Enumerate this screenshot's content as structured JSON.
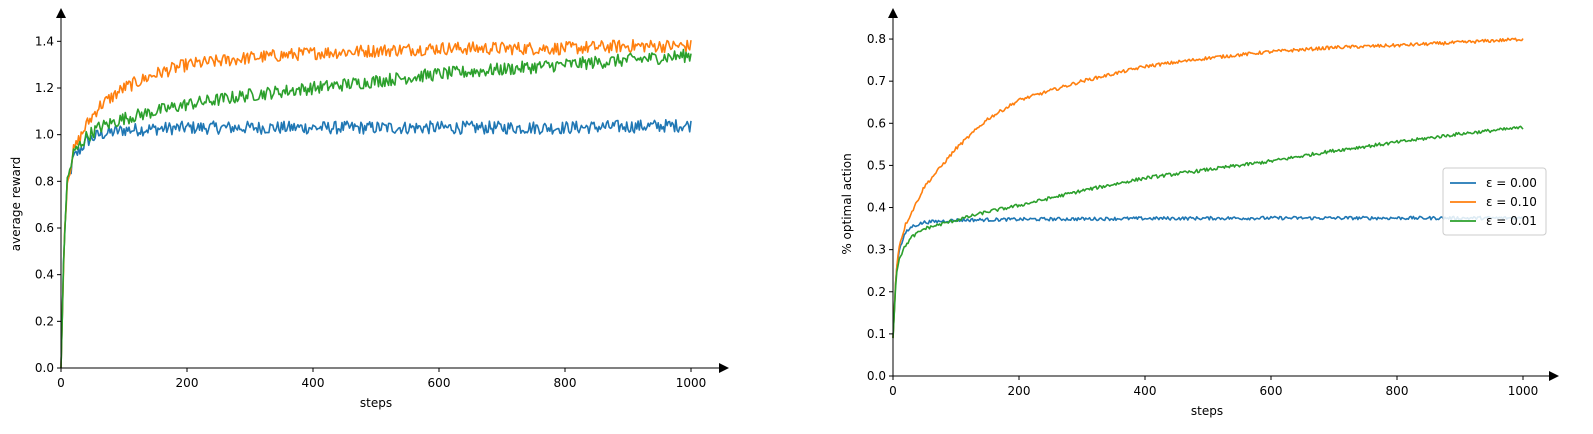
{
  "chart_data": [
    {
      "type": "line",
      "xlabel": "steps",
      "ylabel": "average reward",
      "xlim": [
        0,
        1050
      ],
      "ylim": [
        0,
        1.5
      ],
      "xticks": [
        0,
        200,
        400,
        600,
        800,
        1000
      ],
      "xtick_labels": [
        "0",
        "200",
        "400",
        "600",
        "800",
        "1000"
      ],
      "yticks": [
        0.0,
        0.2,
        0.4,
        0.6,
        0.8,
        1.0,
        1.2,
        1.4
      ],
      "ytick_labels": [
        "0.0",
        "0.2",
        "0.4",
        "0.6",
        "0.8",
        "1.0",
        "1.2",
        "1.4"
      ],
      "grid": false,
      "series": [
        {
          "color": "#1f77b4",
          "x": [
            0,
            5,
            10,
            20,
            40,
            60,
            100,
            200,
            400,
            600,
            800,
            1000
          ],
          "values": [
            0.0,
            0.55,
            0.78,
            0.9,
            0.97,
            1.0,
            1.02,
            1.03,
            1.03,
            1.03,
            1.03,
            1.04
          ]
        },
        {
          "color": "#ff7f0e",
          "x": [
            0,
            5,
            10,
            20,
            40,
            60,
            100,
            150,
            200,
            300,
            400,
            500,
            600,
            700,
            800,
            900,
            1000
          ],
          "values": [
            0.0,
            0.55,
            0.8,
            0.93,
            1.04,
            1.12,
            1.2,
            1.26,
            1.3,
            1.33,
            1.35,
            1.36,
            1.37,
            1.37,
            1.37,
            1.38,
            1.38
          ]
        },
        {
          "color": "#2ca02c",
          "x": [
            0,
            5,
            10,
            20,
            40,
            60,
            100,
            150,
            200,
            300,
            400,
            500,
            600,
            700,
            800,
            900,
            1000
          ],
          "values": [
            0.0,
            0.55,
            0.8,
            0.92,
            0.99,
            1.03,
            1.07,
            1.1,
            1.13,
            1.17,
            1.2,
            1.23,
            1.26,
            1.28,
            1.3,
            1.32,
            1.34
          ]
        }
      ]
    },
    {
      "type": "line",
      "xlabel": "steps",
      "ylabel": "% optimal action",
      "xlim": [
        0,
        1050
      ],
      "ylim": [
        0,
        0.85
      ],
      "xticks": [
        0,
        200,
        400,
        600,
        800,
        1000
      ],
      "xtick_labels": [
        "0",
        "200",
        "400",
        "600",
        "800",
        "1000"
      ],
      "yticks": [
        0.0,
        0.1,
        0.2,
        0.3,
        0.4,
        0.5,
        0.6,
        0.7,
        0.8
      ],
      "ytick_labels": [
        "0.0",
        "0.1",
        "0.2",
        "0.3",
        "0.4",
        "0.5",
        "0.6",
        "0.7",
        "0.8"
      ],
      "grid": false,
      "legend": "center-right",
      "series": [
        {
          "name": "ε = 0.00",
          "color": "#1f77b4",
          "x": [
            0,
            5,
            10,
            20,
            30,
            50,
            100,
            200,
            400,
            600,
            800,
            1000
          ],
          "values": [
            0.09,
            0.25,
            0.3,
            0.34,
            0.355,
            0.365,
            0.37,
            0.372,
            0.374,
            0.375,
            0.375,
            0.375
          ]
        },
        {
          "name": "ε = 0.10",
          "color": "#ff7f0e",
          "x": [
            0,
            5,
            10,
            20,
            30,
            50,
            100,
            150,
            200,
            300,
            400,
            500,
            600,
            700,
            800,
            900,
            1000
          ],
          "values": [
            0.09,
            0.25,
            0.31,
            0.36,
            0.39,
            0.45,
            0.54,
            0.61,
            0.655,
            0.7,
            0.735,
            0.755,
            0.77,
            0.78,
            0.785,
            0.792,
            0.8
          ]
        },
        {
          "name": "ε = 0.01",
          "color": "#2ca02c",
          "x": [
            0,
            5,
            10,
            20,
            30,
            50,
            100,
            150,
            200,
            300,
            400,
            500,
            600,
            700,
            800,
            900,
            1000
          ],
          "values": [
            0.09,
            0.24,
            0.28,
            0.31,
            0.33,
            0.35,
            0.37,
            0.39,
            0.405,
            0.44,
            0.47,
            0.49,
            0.51,
            0.535,
            0.555,
            0.575,
            0.59
          ]
        }
      ]
    }
  ]
}
